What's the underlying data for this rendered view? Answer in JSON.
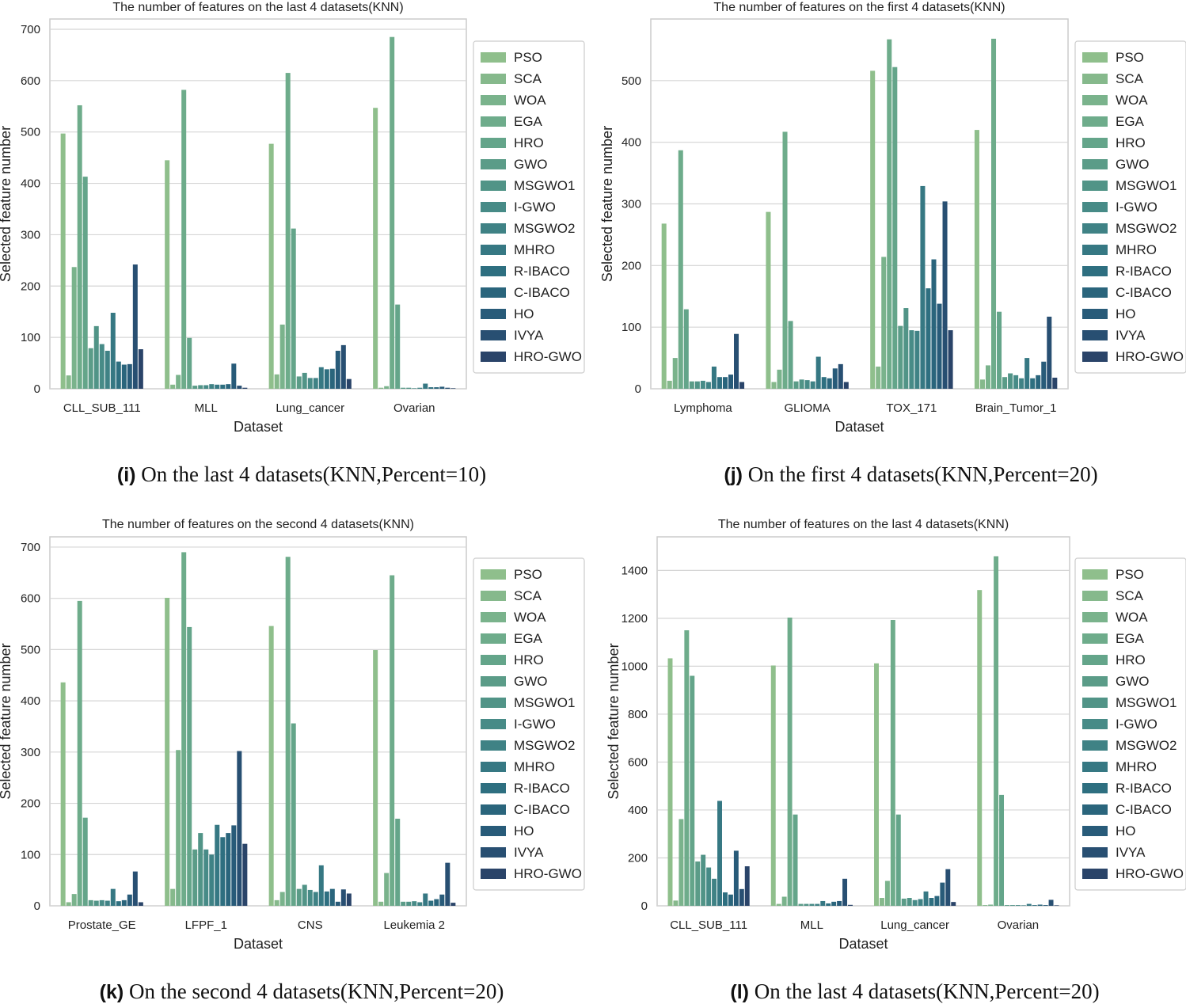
{
  "colors": [
    "#8fbf8c",
    "#86b98c",
    "#7ab38c",
    "#6eac8b",
    "#64a58a",
    "#5b9c88",
    "#519487",
    "#478b87",
    "#3f8285",
    "#367883",
    "#2e6f80",
    "#2a657c",
    "#285b79",
    "#284f72",
    "#2a4469"
  ],
  "chart_data": [
    {
      "type": "bar",
      "title": "The number of features on the last 4 datasets(KNN)",
      "caption_letter": "(i)",
      "caption_text": " On the last 4 datasets(KNN,Percent=10)",
      "xlabel": "Dataset",
      "ylabel": "Selected feature number",
      "ylim": [
        0,
        720
      ],
      "yticks": [
        0,
        100,
        200,
        300,
        400,
        500,
        600,
        700
      ],
      "ytick_labels": [
        "0",
        "100",
        "200",
        "300",
        "400",
        "500",
        "600",
        "700"
      ],
      "legend_position": "right",
      "categories": [
        "CLL_SUB_111",
        "MLL",
        "Lung_cancer",
        "Ovarian"
      ],
      "series": [
        {
          "name": "PSO",
          "values": [
            497,
            445,
            477,
            547
          ]
        },
        {
          "name": "SCA",
          "values": [
            26,
            8,
            28,
            2
          ]
        },
        {
          "name": "WOA",
          "values": [
            237,
            27,
            125,
            5
          ]
        },
        {
          "name": "EGA",
          "values": [
            552,
            582,
            615,
            685
          ]
        },
        {
          "name": "HRO",
          "values": [
            413,
            99,
            312,
            164
          ]
        },
        {
          "name": "GWO",
          "values": [
            79,
            6,
            24,
            2
          ]
        },
        {
          "name": "MSGWO1",
          "values": [
            122,
            7,
            31,
            2
          ]
        },
        {
          "name": "I-GWO",
          "values": [
            87,
            7,
            21,
            1
          ]
        },
        {
          "name": "MSGWO2",
          "values": [
            74,
            9,
            21,
            2
          ]
        },
        {
          "name": "MHRO",
          "values": [
            148,
            8,
            42,
            10
          ]
        },
        {
          "name": "R-IBACO",
          "values": [
            53,
            8,
            38,
            3
          ]
        },
        {
          "name": "C-IBACO",
          "values": [
            47,
            9,
            39,
            3
          ]
        },
        {
          "name": "HO",
          "values": [
            48,
            49,
            74,
            4
          ]
        },
        {
          "name": "IVYA",
          "values": [
            242,
            6,
            85,
            2
          ]
        },
        {
          "name": "HRO-GWO",
          "values": [
            77,
            2,
            19,
            1
          ]
        }
      ]
    },
    {
      "type": "bar",
      "title": "The number of features on the first 4 datasets(KNN)",
      "caption_letter": "(j)",
      "caption_text": " On the first 4 datasets(KNN,Percent=20)",
      "xlabel": "Dataset",
      "ylabel": "Selected feature number",
      "ylim": [
        0,
        600
      ],
      "yticks": [
        0,
        100,
        200,
        300,
        400,
        500
      ],
      "ytick_labels": [
        "0",
        "100",
        "200",
        "300",
        "400",
        "500"
      ],
      "legend_position": "right",
      "categories": [
        "Lymphoma",
        "GLIOMA",
        "TOX_171",
        "Brain_Tumor_1"
      ],
      "series": [
        {
          "name": "PSO",
          "values": [
            268,
            287,
            516,
            420
          ]
        },
        {
          "name": "SCA",
          "values": [
            13,
            11,
            36,
            15
          ]
        },
        {
          "name": "WOA",
          "values": [
            50,
            31,
            214,
            38
          ]
        },
        {
          "name": "EGA",
          "values": [
            387,
            417,
            567,
            568
          ]
        },
        {
          "name": "HRO",
          "values": [
            129,
            110,
            522,
            125
          ]
        },
        {
          "name": "GWO",
          "values": [
            12,
            12,
            102,
            19
          ]
        },
        {
          "name": "MSGWO1",
          "values": [
            12,
            15,
            131,
            25
          ]
        },
        {
          "name": "I-GWO",
          "values": [
            13,
            14,
            95,
            22
          ]
        },
        {
          "name": "MSGWO2",
          "values": [
            11,
            12,
            94,
            17
          ]
        },
        {
          "name": "MHRO",
          "values": [
            36,
            52,
            329,
            50
          ]
        },
        {
          "name": "R-IBACO",
          "values": [
            19,
            19,
            163,
            17
          ]
        },
        {
          "name": "C-IBACO",
          "values": [
            19,
            17,
            210,
            22
          ]
        },
        {
          "name": "HO",
          "values": [
            23,
            33,
            138,
            44
          ]
        },
        {
          "name": "IVYA",
          "values": [
            89,
            40,
            304,
            117
          ]
        },
        {
          "name": "HRO-GWO",
          "values": [
            11,
            11,
            95,
            18
          ]
        }
      ]
    },
    {
      "type": "bar",
      "title": "The number of features on the second 4 datasets(KNN)",
      "caption_letter": "(k)",
      "caption_text": " On the second 4 datasets(KNN,Percent=20)",
      "xlabel": "Dataset",
      "ylabel": "Selected feature number",
      "ylim": [
        0,
        720
      ],
      "yticks": [
        0,
        100,
        200,
        300,
        400,
        500,
        600,
        700
      ],
      "ytick_labels": [
        "0",
        "100",
        "200",
        "300",
        "400",
        "500",
        "600",
        "700"
      ],
      "legend_position": "right",
      "categories": [
        "Prostate_GE",
        "LFPF_1",
        "CNS",
        "Leukemia 2"
      ],
      "series": [
        {
          "name": "PSO",
          "values": [
            436,
            601,
            546,
            499
          ]
        },
        {
          "name": "SCA",
          "values": [
            7,
            33,
            11,
            8
          ]
        },
        {
          "name": "WOA",
          "values": [
            23,
            304,
            27,
            64
          ]
        },
        {
          "name": "EGA",
          "values": [
            595,
            690,
            681,
            645
          ]
        },
        {
          "name": "HRO",
          "values": [
            172,
            544,
            356,
            170
          ]
        },
        {
          "name": "GWO",
          "values": [
            11,
            110,
            33,
            8
          ]
        },
        {
          "name": "MSGWO1",
          "values": [
            10,
            142,
            41,
            8
          ]
        },
        {
          "name": "I-GWO",
          "values": [
            11,
            110,
            31,
            9
          ]
        },
        {
          "name": "MSGWO2",
          "values": [
            10,
            100,
            27,
            7
          ]
        },
        {
          "name": "MHRO",
          "values": [
            33,
            158,
            79,
            24
          ]
        },
        {
          "name": "R-IBACO",
          "values": [
            9,
            134,
            28,
            10
          ]
        },
        {
          "name": "C-IBACO",
          "values": [
            11,
            142,
            33,
            13
          ]
        },
        {
          "name": "HO",
          "values": [
            22,
            157,
            8,
            22
          ]
        },
        {
          "name": "IVYA",
          "values": [
            67,
            302,
            32,
            84
          ]
        },
        {
          "name": "HRO-GWO",
          "values": [
            7,
            121,
            24,
            6
          ]
        }
      ]
    },
    {
      "type": "bar",
      "title": "The number of features on the last 4 datasets(KNN)",
      "caption_letter": "(l)",
      "caption_text": " On the last 4 datasets(KNN,Percent=20)",
      "xlabel": "Dataset",
      "ylabel": "Selected feature number",
      "ylim": [
        0,
        1540
      ],
      "yticks": [
        0,
        200,
        400,
        600,
        800,
        1000,
        1200,
        1400
      ],
      "ytick_labels": [
        "0",
        "200",
        "400",
        "600",
        "800",
        "1000",
        "1200",
        "1400"
      ],
      "legend_position": "right",
      "categories": [
        "CLL_SUB_111",
        "MLL",
        "Lung_cancer",
        "Ovarian"
      ],
      "series": [
        {
          "name": "PSO",
          "values": [
            1033,
            1003,
            1012,
            1318
          ]
        },
        {
          "name": "SCA",
          "values": [
            22,
            8,
            33,
            3
          ]
        },
        {
          "name": "WOA",
          "values": [
            362,
            38,
            104,
            5
          ]
        },
        {
          "name": "EGA",
          "values": [
            1150,
            1203,
            1193,
            1459
          ]
        },
        {
          "name": "HRO",
          "values": [
            960,
            381,
            381,
            463
          ]
        },
        {
          "name": "GWO",
          "values": [
            185,
            8,
            30,
            3
          ]
        },
        {
          "name": "MSGWO1",
          "values": [
            213,
            8,
            33,
            3
          ]
        },
        {
          "name": "I-GWO",
          "values": [
            160,
            8,
            24,
            3
          ]
        },
        {
          "name": "MSGWO2",
          "values": [
            113,
            8,
            28,
            2
          ]
        },
        {
          "name": "MHRO",
          "values": [
            438,
            20,
            60,
            8
          ]
        },
        {
          "name": "R-IBACO",
          "values": [
            56,
            10,
            33,
            3
          ]
        },
        {
          "name": "C-IBACO",
          "values": [
            47,
            17,
            41,
            5
          ]
        },
        {
          "name": "HO",
          "values": [
            230,
            20,
            97,
            3
          ]
        },
        {
          "name": "IVYA",
          "values": [
            70,
            113,
            153,
            25
          ]
        },
        {
          "name": "HRO-GWO",
          "values": [
            165,
            4,
            16,
            2
          ]
        }
      ]
    }
  ]
}
